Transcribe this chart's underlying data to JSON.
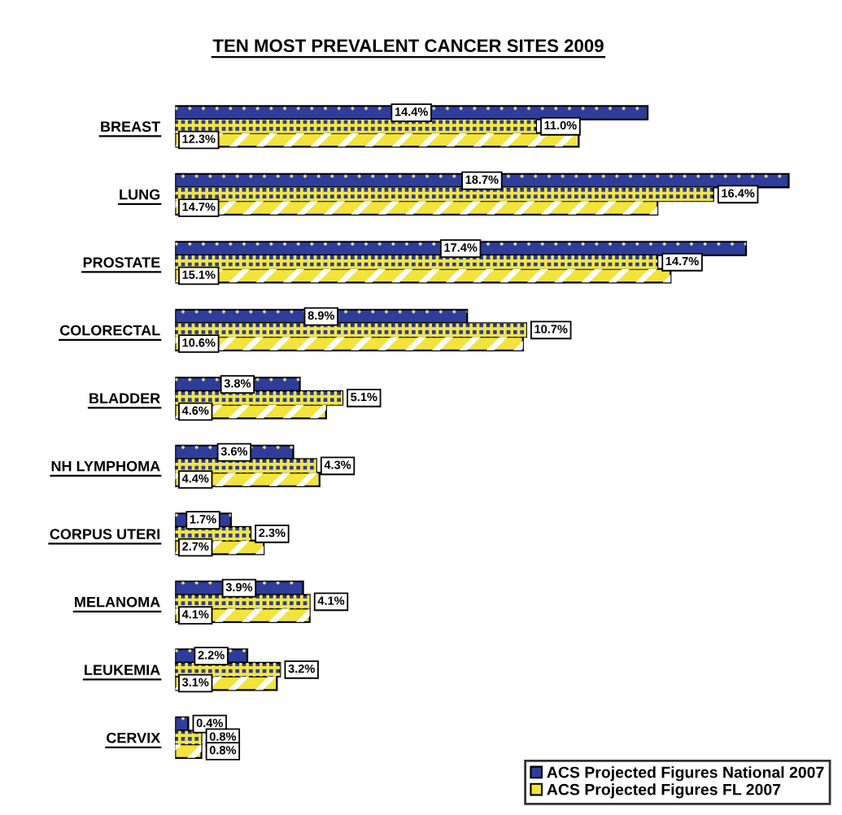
{
  "chart_data": {
    "type": "bar",
    "orientation": "horizontal",
    "title": "TEN MOST PREVALENT CANCER SITES 2009",
    "categories": [
      "BREAST",
      "LUNG",
      "PROSTATE",
      "COLORECTAL",
      "BLADDER",
      "NH LYMPHOMA",
      "CORPUS UTERI",
      "MELANOMA",
      "LEUKEMIA",
      "CERVIX"
    ],
    "series": [
      {
        "color": "#2e3d9a",
        "values": [
          14.4,
          18.7,
          17.4,
          8.9,
          3.8,
          3.6,
          1.7,
          3.9,
          2.2,
          0.4
        ],
        "value_labels": [
          "14.4%",
          "18.7%",
          "17.4%",
          "8.9%",
          "3.8%",
          "3.6%",
          "1.7%",
          "3.9%",
          "2.2%",
          "0.4%"
        ]
      },
      {
        "name": "ACS Projected Figures National 2007",
        "color": "#2e3d9a",
        "values": [
          11.0,
          16.4,
          14.7,
          10.7,
          5.1,
          4.3,
          2.3,
          4.1,
          3.2,
          0.8
        ],
        "value_labels": [
          "11.0%",
          "16.4%",
          "14.7%",
          "10.7%",
          "5.1%",
          "4.3%",
          "2.3%",
          "4.1%",
          "3.2%",
          "0.8%"
        ]
      },
      {
        "name": "ACS Projected Figures FL 2007",
        "color": "#f2e43c",
        "values": [
          12.3,
          14.7,
          15.1,
          10.6,
          4.6,
          4.4,
          2.7,
          4.1,
          3.1,
          0.8
        ],
        "value_labels": [
          "12.3%",
          "14.7%",
          "15.1%",
          "10.6%",
          "4.6%",
          "4.4%",
          "2.7%",
          "4.1%",
          "3.1%",
          "0.8%"
        ]
      }
    ],
    "legend": "bottom right"
  }
}
